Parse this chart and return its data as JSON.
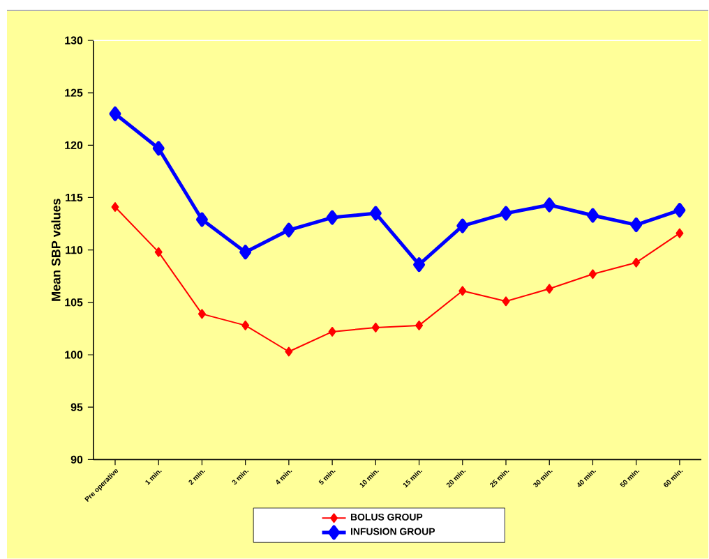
{
  "chart_data": {
    "type": "line",
    "ylabel": "Mean SBP values",
    "categories": [
      "Pre operative",
      "1 min.",
      "2 min.",
      "3 min.",
      "4 min.",
      "5 min.",
      "10 min.",
      "15 min.",
      "20 min.",
      "25 min.",
      "30 min.",
      "40 min.",
      "50 min.",
      "60 min."
    ],
    "series": [
      {
        "name": "BOLUS GROUP",
        "color": "#ff0000",
        "values": [
          114.1,
          109.8,
          103.9,
          102.8,
          100.3,
          102.2,
          102.6,
          102.8,
          106.1,
          105.1,
          106.3,
          107.7,
          108.8,
          111.6
        ]
      },
      {
        "name": "INFUSION GROUP",
        "color": "#0000ff",
        "values": [
          123,
          119.7,
          112.9,
          109.8,
          111.9,
          113.1,
          113.5,
          108.6,
          112.3,
          113.5,
          114.3,
          113.3,
          112.4,
          113.8
        ]
      }
    ],
    "ylim": [
      90,
      130
    ],
    "yticks": [
      90,
      95,
      100,
      105,
      110,
      115,
      120,
      125,
      130
    ],
    "grid": false,
    "legend": "bottom",
    "marker": "diamond",
    "line_style": "solid"
  }
}
